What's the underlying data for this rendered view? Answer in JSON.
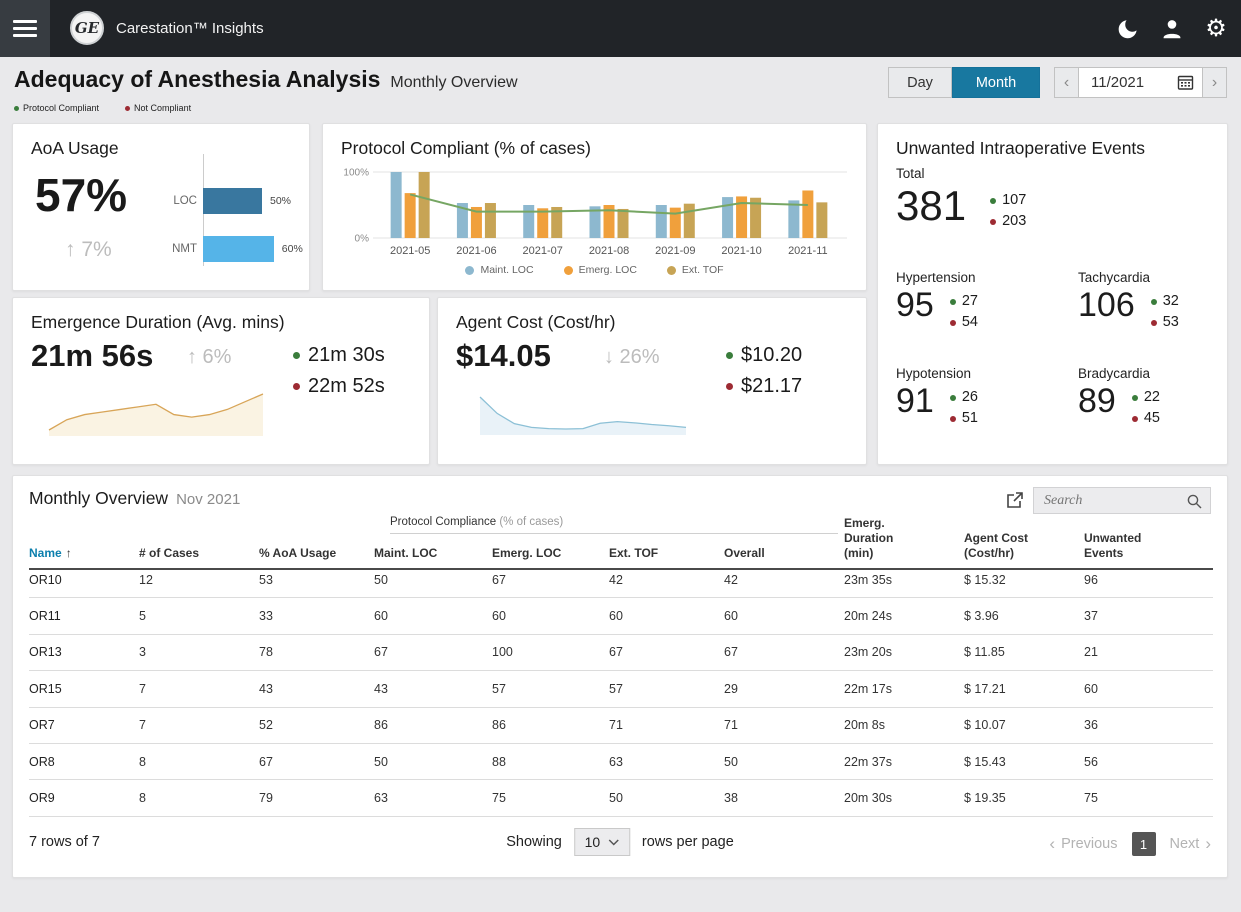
{
  "topbar": {
    "app_title": "Carestation™ Insights",
    "logo_text": "GE"
  },
  "header": {
    "title": "Adequacy of Anesthesia Analysis",
    "subtitle": "Monthly Overview",
    "legend": [
      {
        "label": "Protocol Compliant",
        "color": "#3a7d3c"
      },
      {
        "label": "Not Compliant",
        "color": "#9d2b33"
      }
    ],
    "toggle": {
      "day": "Day",
      "month": "Month",
      "active": "Month",
      "active_color": "#1878a0"
    },
    "date": {
      "value": "11/2021",
      "prev_icon": "‹",
      "next_icon": "›"
    }
  },
  "chart_data": [
    {
      "id": "protocol-compliant",
      "type": "bar",
      "title": "Protocol Compliant (% of cases)",
      "categories": [
        "2021-05",
        "2021-06",
        "2021-07",
        "2021-08",
        "2021-09",
        "2021-10",
        "2021-11"
      ],
      "series": [
        {
          "name": "Maint. LOC",
          "color": "#8db8cf",
          "values": [
            100,
            53,
            50,
            48,
            50,
            62,
            57
          ]
        },
        {
          "name": "Emerg. LOC",
          "color": "#f0a03c",
          "values": [
            68,
            47,
            45,
            50,
            46,
            63,
            72
          ]
        },
        {
          "name": "Ext. TOF",
          "color": "#c7a455",
          "values": [
            100,
            53,
            47,
            44,
            52,
            61,
            54
          ]
        }
      ],
      "line": {
        "name": "Overall",
        "color": "#76a663",
        "values": [
          66,
          40,
          40,
          42,
          37,
          53,
          50
        ]
      },
      "ylim": [
        0,
        100
      ],
      "yticks": [
        "100%",
        "0%"
      ],
      "legend_position": "bottom"
    },
    {
      "id": "aoa-usage-bars",
      "type": "bar",
      "categories": [
        "LOC",
        "NMT"
      ],
      "values": [
        50,
        60
      ],
      "labels": [
        "50%",
        "60%"
      ],
      "colors": [
        "#39779f",
        "#55b4e8"
      ]
    },
    {
      "id": "emergence-spark",
      "type": "area",
      "color": "#d8a558",
      "fill": "#faf3e3",
      "values": [
        21.0,
        21.4,
        21.6,
        21.7,
        21.8,
        21.9,
        22.0,
        21.6,
        21.5,
        21.6,
        21.8,
        22.1,
        22.4
      ]
    },
    {
      "id": "agent-spark",
      "type": "area",
      "color": "#8cc0d6",
      "fill": "#e9f2f8",
      "values": [
        21.0,
        17.0,
        14.5,
        13.6,
        13.3,
        13.2,
        13.3,
        14.6,
        15.0,
        14.7,
        14.3,
        14.0,
        13.6
      ]
    }
  ],
  "cards": {
    "aoa": {
      "title": "AoA Usage",
      "value": "57%",
      "trend": "↑ 7%"
    },
    "events": {
      "title": "Unwanted Intraoperative Events",
      "total": {
        "label": "Total",
        "value": "381",
        "green": "107",
        "red": "203"
      },
      "hypertension": {
        "label": "Hypertension",
        "value": "95",
        "green": "27",
        "red": "54"
      },
      "tachycardia": {
        "label": "Tachycardia",
        "value": "106",
        "green": "32",
        "red": "53"
      },
      "hypotension": {
        "label": "Hypotension",
        "value": "91",
        "green": "26",
        "red": "51"
      },
      "bradycardia": {
        "label": "Bradycardia",
        "value": "89",
        "green": "22",
        "red": "45"
      }
    },
    "emergence": {
      "title": "Emergence Duration (Avg. mins)",
      "value": "21m 56s",
      "trend": "↑ 6%",
      "green": "21m 30s",
      "red": "22m 52s"
    },
    "agent": {
      "title": "Agent Cost (Cost/hr)",
      "value": "$14.05",
      "trend": "↓ 26%",
      "green": "$10.20",
      "red": "$21.17"
    }
  },
  "table": {
    "title": "Monthly Overview",
    "period": "Nov 2021",
    "search_placeholder": "Search",
    "group_header": {
      "label": "Protocol Compliance",
      "note": "(% of cases)"
    },
    "columns": [
      "Name",
      "# of Cases",
      "% AoA Usage",
      "Maint. LOC",
      "Emerg. LOC",
      "Ext. TOF",
      "Overall",
      "Emerg.\nDuration\n(min)",
      "Agent Cost\n(Cost/hr)",
      "Unwanted\nEvents"
    ],
    "sort_icon": "↑",
    "sorted_column": "Name",
    "rows": [
      [
        "OR10",
        "12",
        "53",
        "50",
        "67",
        "42",
        "42",
        "23m 35s",
        "$ 15.32",
        "96"
      ],
      [
        "OR11",
        "5",
        "33",
        "60",
        "60",
        "60",
        "60",
        "20m 24s",
        "$ 3.96",
        "37"
      ],
      [
        "OR13",
        "3",
        "78",
        "67",
        "100",
        "67",
        "67",
        "23m 20s",
        "$ 11.85",
        "21"
      ],
      [
        "OR15",
        "7",
        "43",
        "43",
        "57",
        "57",
        "29",
        "22m 17s",
        "$ 17.21",
        "60"
      ],
      [
        "OR7",
        "7",
        "52",
        "86",
        "86",
        "71",
        "71",
        "20m 8s",
        "$ 10.07",
        "36"
      ],
      [
        "OR8",
        "8",
        "67",
        "50",
        "88",
        "63",
        "50",
        "22m 37s",
        "$ 15.43",
        "56"
      ],
      [
        "OR9",
        "8",
        "79",
        "63",
        "75",
        "50",
        "38",
        "20m 30s",
        "$ 19.35",
        "75"
      ]
    ],
    "footer": {
      "rows_status": "7 rows of 7",
      "showing_label": "Showing",
      "rows_per_page_value": "10",
      "rows_per_page_label": "rows per page",
      "previous_label": "Previous",
      "prev_icon": "‹",
      "page": "1",
      "next_label": "Next",
      "next_icon": "›"
    }
  }
}
